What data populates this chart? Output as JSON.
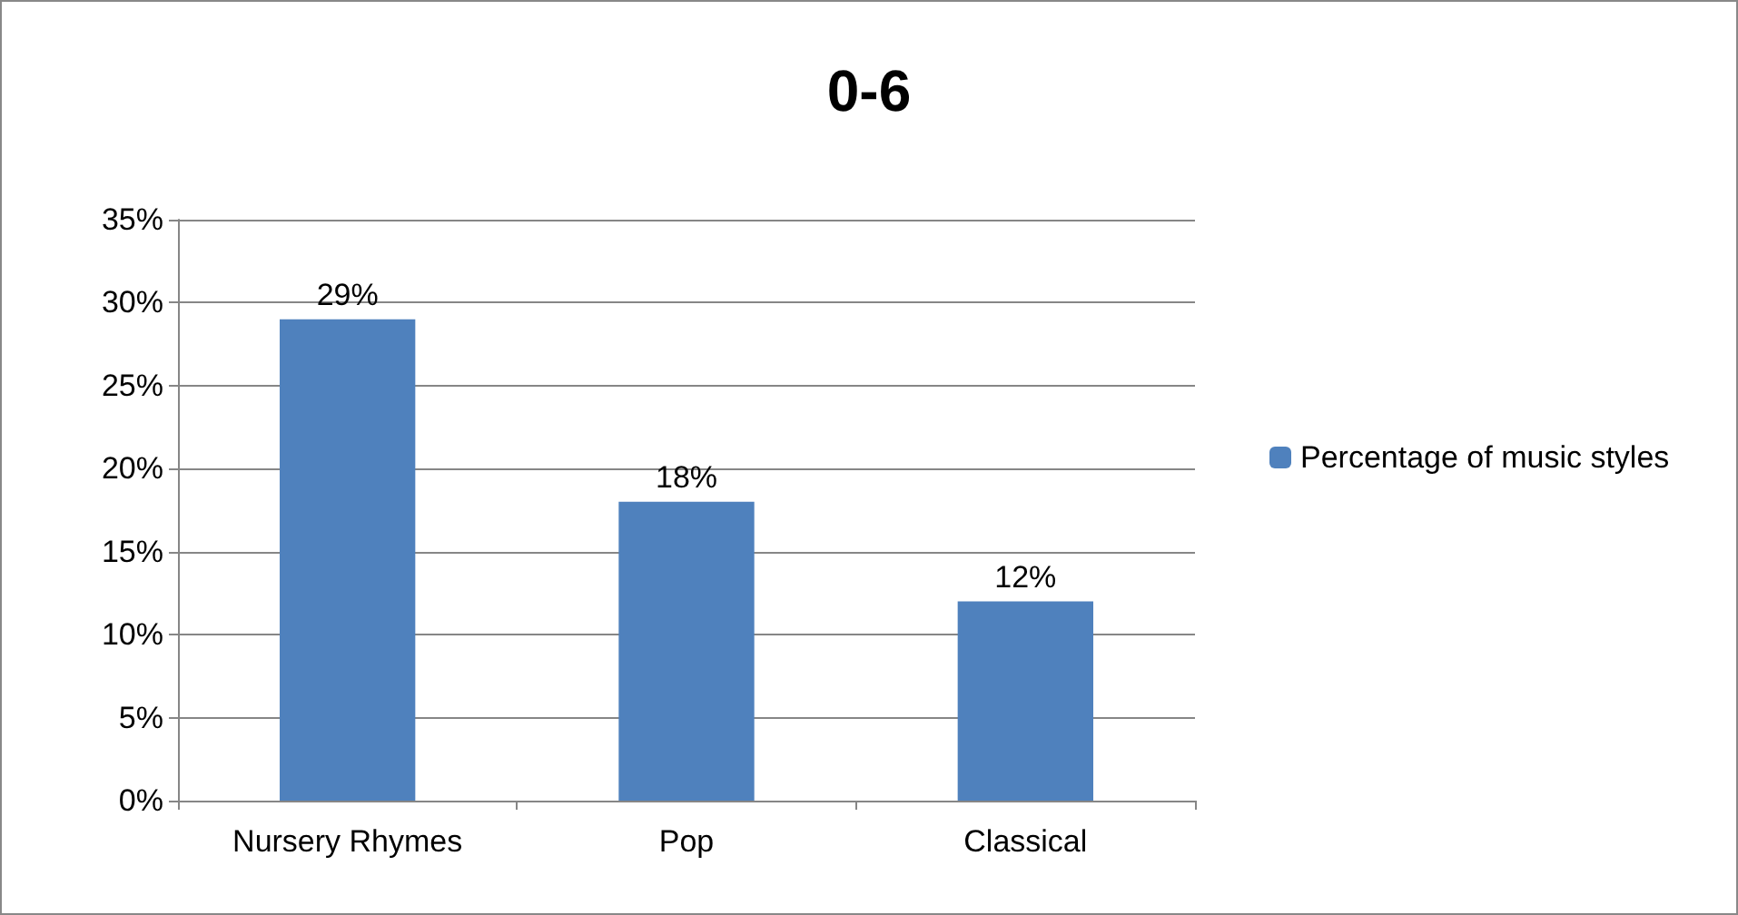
{
  "chart_data": {
    "type": "bar",
    "title": "0-6",
    "categories": [
      "Nursery Rhymes",
      "Pop",
      "Classical"
    ],
    "series": [
      {
        "name": "Percentage of music styles",
        "color": "#4f81bd",
        "values": [
          29,
          18,
          12
        ],
        "value_labels": [
          "29%",
          "18%",
          "12%"
        ]
      }
    ],
    "ylim": [
      0,
      35
    ],
    "yticks": [
      {
        "value": 0,
        "label": "0%"
      },
      {
        "value": 5,
        "label": "5%"
      },
      {
        "value": 10,
        "label": "10%"
      },
      {
        "value": 15,
        "label": "15%"
      },
      {
        "value": 20,
        "label": "20%"
      },
      {
        "value": 25,
        "label": "25%"
      },
      {
        "value": 30,
        "label": "30%"
      },
      {
        "value": 35,
        "label": "35%"
      }
    ],
    "grid": "y",
    "legend": "right"
  }
}
